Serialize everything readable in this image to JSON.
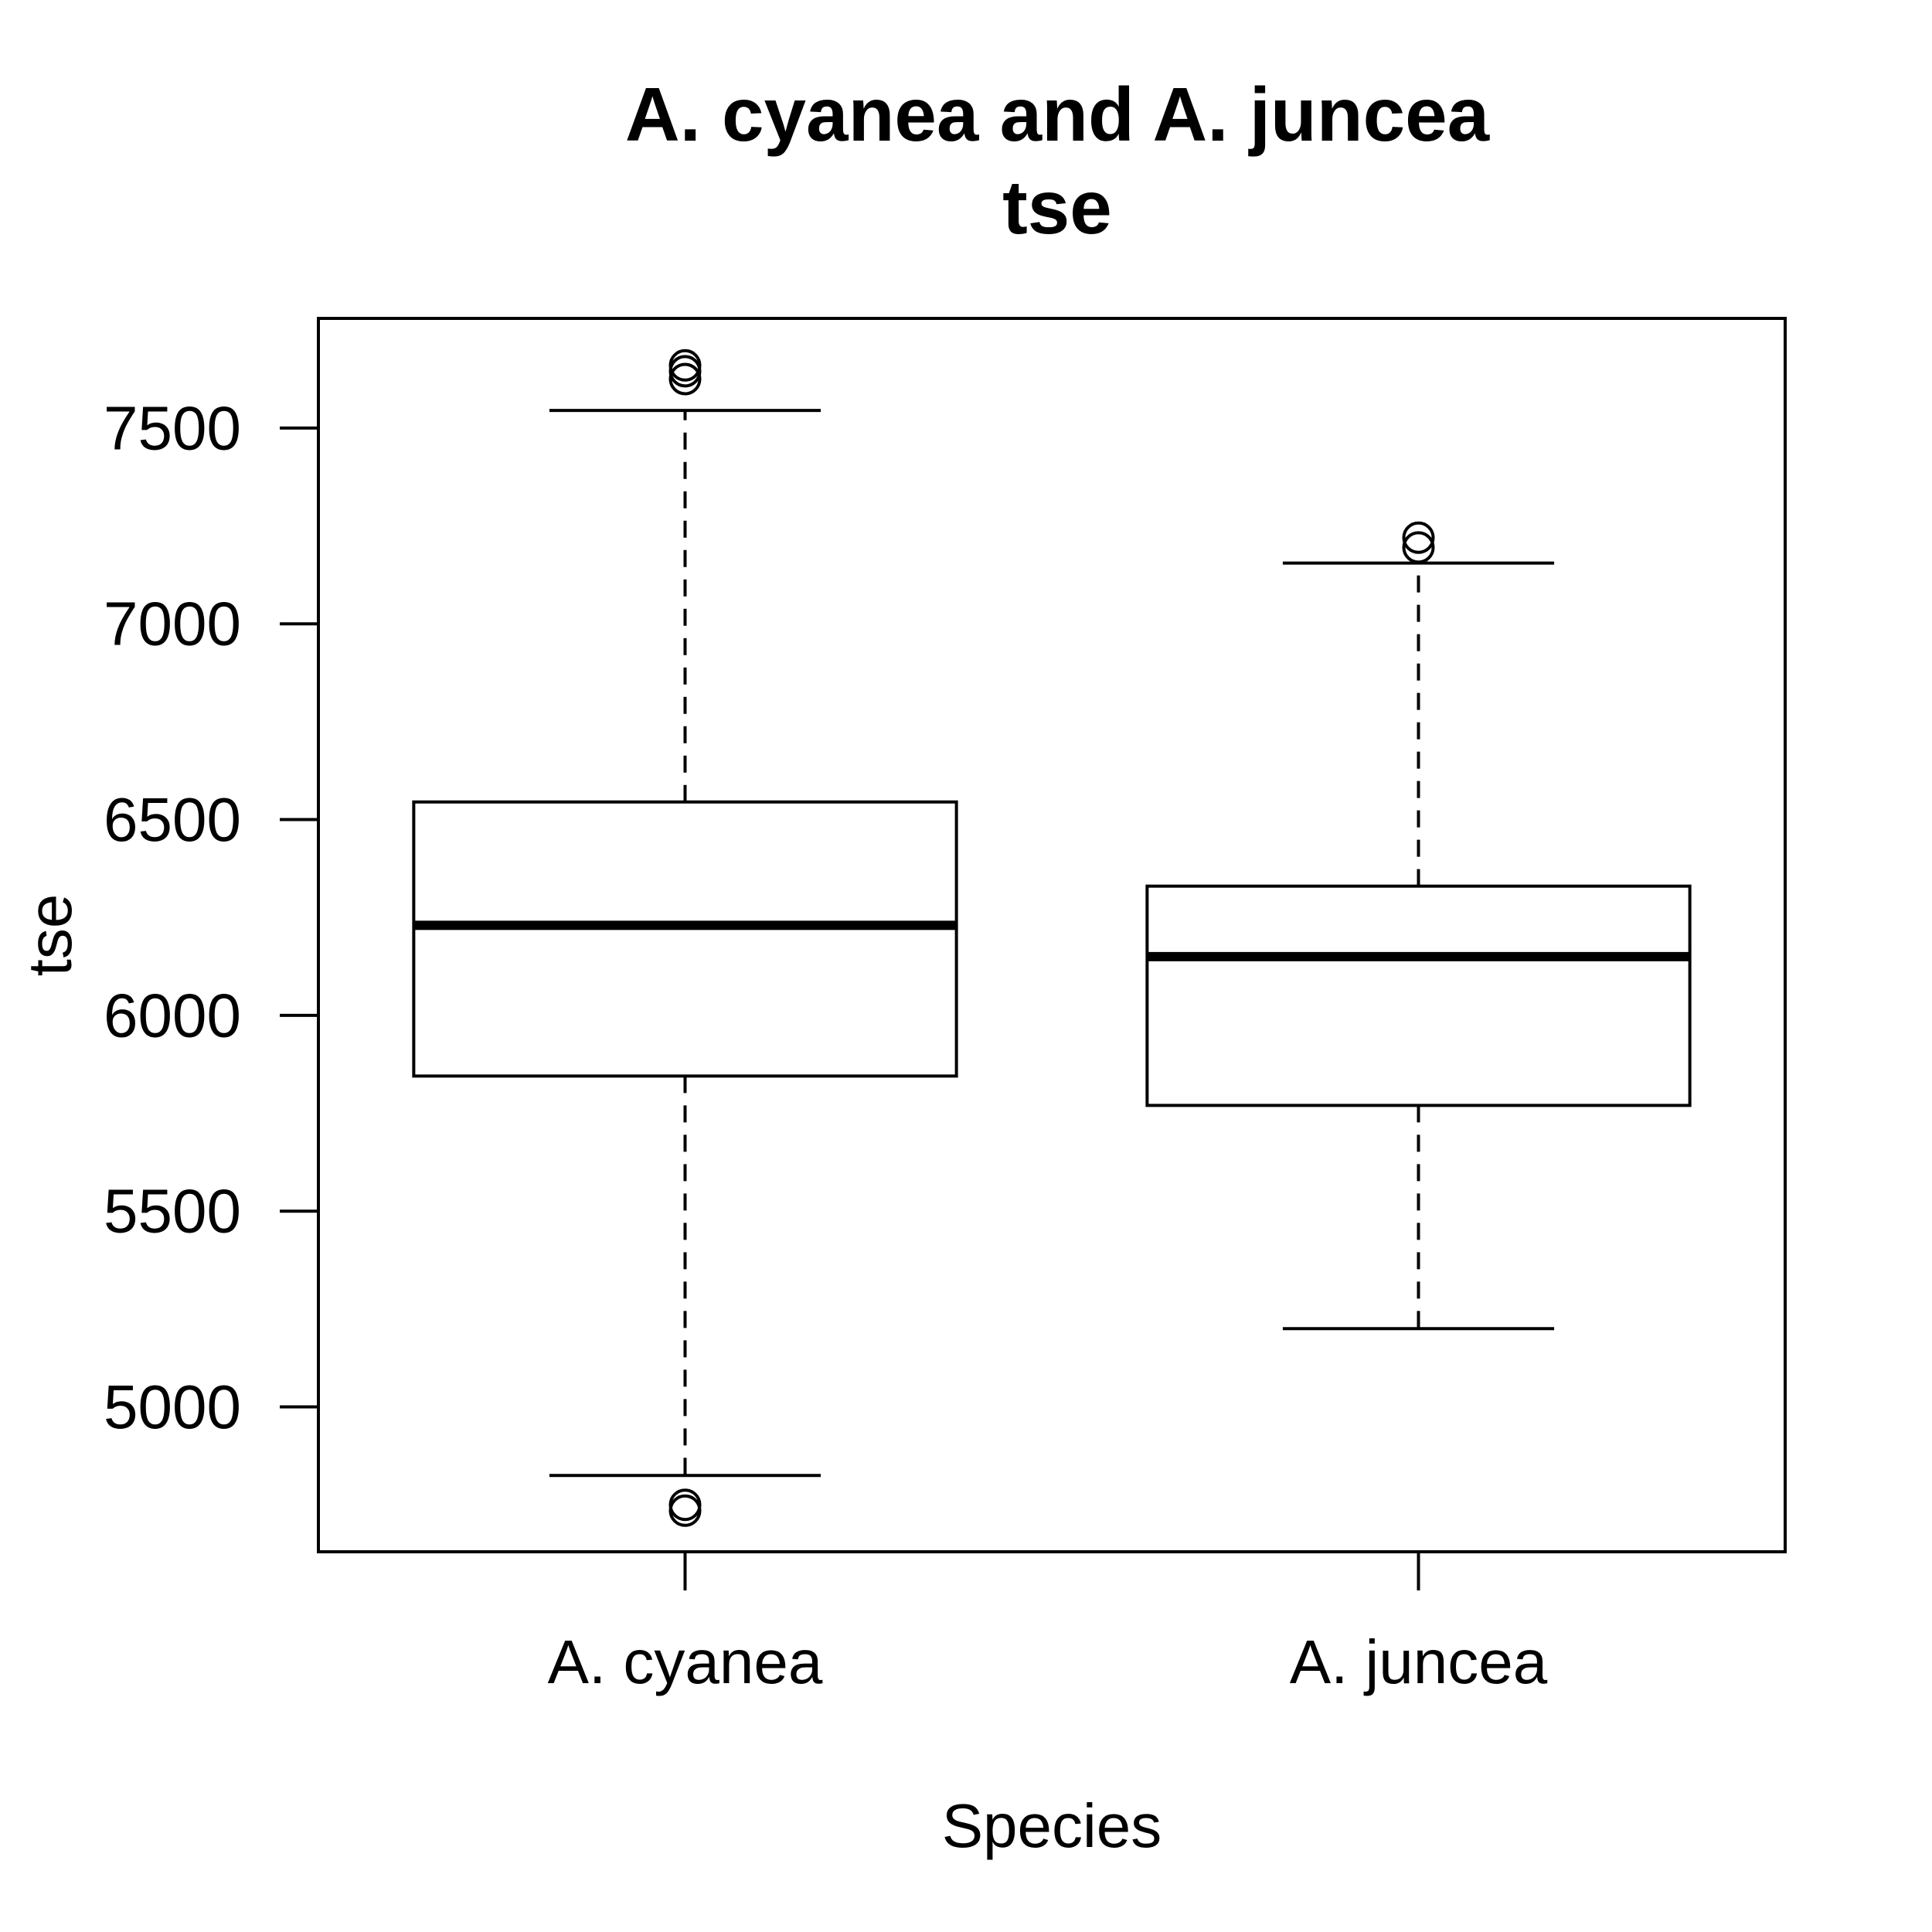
{
  "chart_data": {
    "type": "boxplot",
    "title": "A. cyanea and A. juncea",
    "subtitle": "tse",
    "xlabel": "Species",
    "ylabel": "tse",
    "ylim": [
      4630,
      7780
    ],
    "yticks": [
      5000,
      5500,
      6000,
      6500,
      7000,
      7500
    ],
    "grid": false,
    "categories": [
      "A. cyanea",
      "A. juncea"
    ],
    "boxes": [
      {
        "category": "A. cyanea",
        "whisker_low": 4825,
        "q1": 5845,
        "median": 6230,
        "q3": 6545,
        "whisker_high": 7545,
        "outliers": [
          4735,
          4750,
          7625,
          7645,
          7660
        ]
      },
      {
        "category": "A. juncea",
        "whisker_low": 5200,
        "q1": 5770,
        "median": 6150,
        "q3": 6330,
        "whisker_high": 7155,
        "outliers": [
          7195,
          7220
        ]
      }
    ]
  }
}
